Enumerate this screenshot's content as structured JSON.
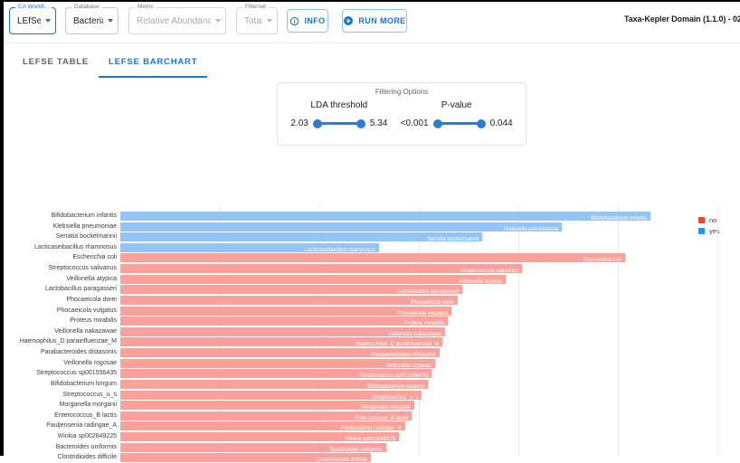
{
  "window": {
    "title": "Taxa-Kepler Domain (1.1.0) - 02"
  },
  "toolbar": {
    "fields": [
      {
        "label": "CA Workfl...",
        "value": "LEfSe",
        "state": "active"
      },
      {
        "label": "Database",
        "value": "Bacteria",
        "state": "enabled"
      },
      {
        "label": "Metric",
        "value": "Relative Abundance",
        "state": "disabled"
      },
      {
        "label": "Filterset",
        "value": "Total",
        "state": "disabled"
      }
    ],
    "info_button": "INFO",
    "run_more_button": "RUN MORE"
  },
  "tabs": [
    {
      "label": "LEFSE TABLE",
      "active": false
    },
    {
      "label": "LEFSE BARCHART",
      "active": true
    }
  ],
  "filtering": {
    "title": "Filtering Options",
    "lda": {
      "label": "LDA threshold",
      "min": "2.03",
      "max": "5.34"
    },
    "pvalue": {
      "label": "P-value",
      "min": "<0.001",
      "max": "0.044"
    }
  },
  "colors": {
    "accent_blue": "#1976d2",
    "slider_blue": "#2a7cd5",
    "bar_yes": "#93c4f7",
    "bar_no": "#f9a19a",
    "legend_no": "#f44336",
    "legend_yes": "#2196f3"
  },
  "chart_data": {
    "type": "bar",
    "orientation": "horizontal",
    "x_range": [
      0,
      6.2
    ],
    "x_gridlines": [
      1,
      2,
      3,
      4,
      5,
      6
    ],
    "legend_position": "right",
    "groups": {
      "no": {
        "legend_color": "#f44336",
        "bar_color": "#f9a19a"
      },
      "yes": {
        "legend_color": "#2196f3",
        "bar_color": "#93c4f7"
      }
    },
    "legend": [
      {
        "label": "no",
        "group": "no"
      },
      {
        "label": "yes",
        "group": "yes"
      }
    ],
    "rows": [
      {
        "name": "Bifidobacterium infantis",
        "group": "yes",
        "lda": 5.33
      },
      {
        "name": "Klebsiella pneumoniae",
        "group": "yes",
        "lda": 4.44
      },
      {
        "name": "Serratia bockelmannii",
        "group": "yes",
        "lda": 3.64
      },
      {
        "name": "Lacticaseibacillus rhamnosus",
        "group": "yes",
        "lda": 2.6
      },
      {
        "name": "Escherichia coli",
        "group": "no",
        "lda": 5.07
      },
      {
        "name": "Streptococcus salivarius",
        "group": "no",
        "lda": 4.04
      },
      {
        "name": "Veillonella atypica",
        "group": "no",
        "lda": 3.87
      },
      {
        "name": "Lactobacillus paragasseri",
        "group": "no",
        "lda": 3.44
      },
      {
        "name": "Phocaeicola dorei",
        "group": "no",
        "lda": 3.39
      },
      {
        "name": "Phocaeicola vulgatus",
        "group": "no",
        "lda": 3.33
      },
      {
        "name": "Proteus mirabilis",
        "group": "no",
        "lda": 3.29
      },
      {
        "name": "Veillonella nakazawae",
        "group": "no",
        "lda": 3.26
      },
      {
        "name": "Haemophilus_D parainfluenzae_M",
        "group": "no",
        "lda": 3.24
      },
      {
        "name": "Parabacteroides distasonis",
        "group": "no",
        "lda": 3.21
      },
      {
        "name": "Veillonella rogosae",
        "group": "no",
        "lda": 3.16
      },
      {
        "name": "Streptococcus sp001556435",
        "group": "no",
        "lda": 3.13
      },
      {
        "name": "Bifidobacterium longum",
        "group": "no",
        "lda": 3.09
      },
      {
        "name": "Streptococcus_u_s",
        "group": "no",
        "lda": 3.03
      },
      {
        "name": "Morganella morganii",
        "group": "no",
        "lda": 2.95
      },
      {
        "name": "Enterococcus_B lactis",
        "group": "no",
        "lda": 2.93
      },
      {
        "name": "Pauljensenia radingae_A",
        "group": "no",
        "lda": 2.86
      },
      {
        "name": "Winkia sp002849225",
        "group": "no",
        "lda": 2.8
      },
      {
        "name": "Bacteroides uniformis",
        "group": "no",
        "lda": 2.67
      },
      {
        "name": "Clostridioides difficile",
        "group": "no",
        "lda": 2.52
      }
    ]
  }
}
